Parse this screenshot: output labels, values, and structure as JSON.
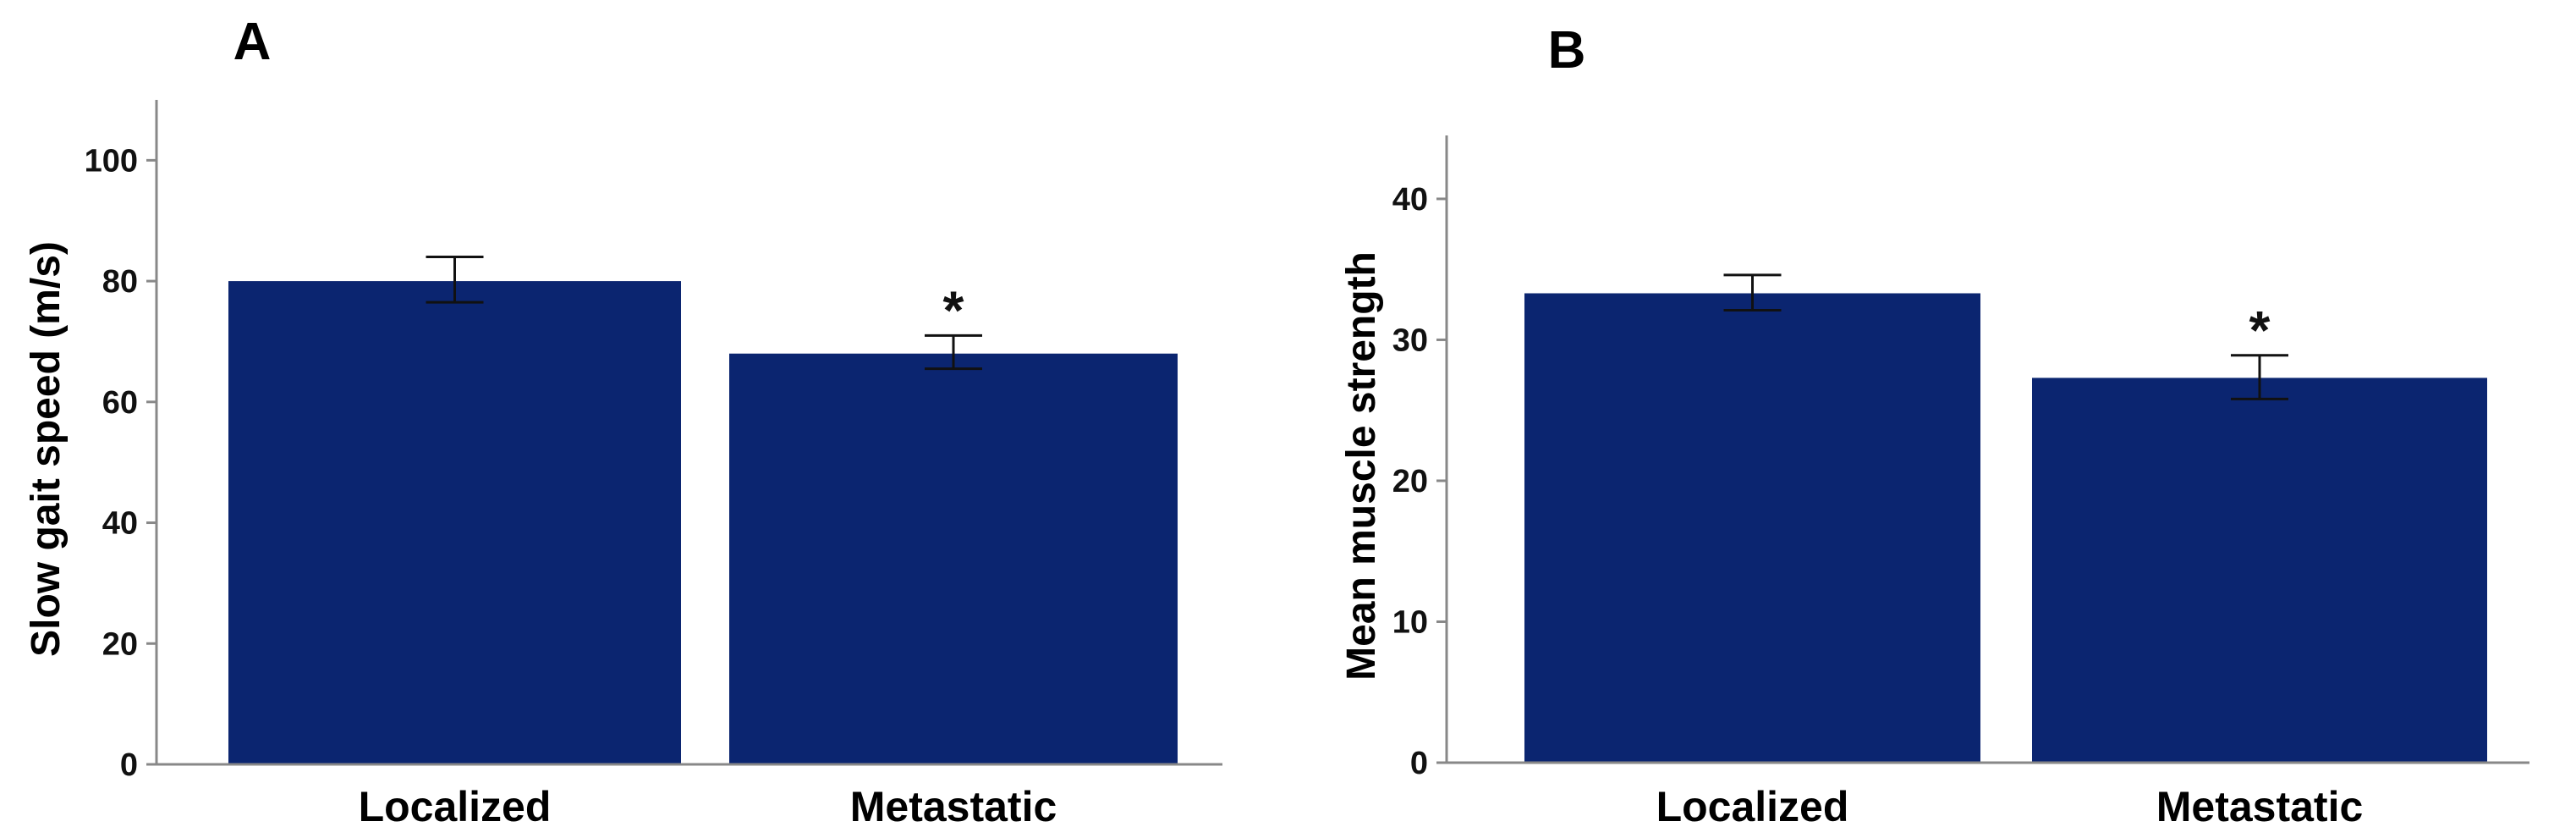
{
  "chart_data": [
    {
      "type": "bar",
      "panel": "A",
      "categories": [
        "Localized",
        "Metastatic"
      ],
      "values": [
        80,
        68
      ],
      "errors_upper": [
        84,
        71
      ],
      "errors_lower": [
        76.5,
        65.5
      ],
      "significance": [
        "",
        "*"
      ],
      "ylabel": "Slow gait speed (m/s)",
      "xlabel": "",
      "ylim": [
        0,
        110
      ],
      "yticks": [
        0,
        20,
        40,
        60,
        80,
        100
      ],
      "color": "#0b2570"
    },
    {
      "type": "bar",
      "panel": "B",
      "categories": [
        "Localized",
        "Metastatic"
      ],
      "values": [
        33.3,
        27.3
      ],
      "errors_upper": [
        34.6,
        28.9
      ],
      "errors_lower": [
        32.1,
        25.8
      ],
      "significance": [
        "",
        "*"
      ],
      "ylabel": "Mean muscle strength",
      "xlabel": "",
      "ylim": [
        0,
        44.5
      ],
      "yticks": [
        0,
        10,
        20,
        30,
        40
      ],
      "color": "#0b2570"
    }
  ]
}
